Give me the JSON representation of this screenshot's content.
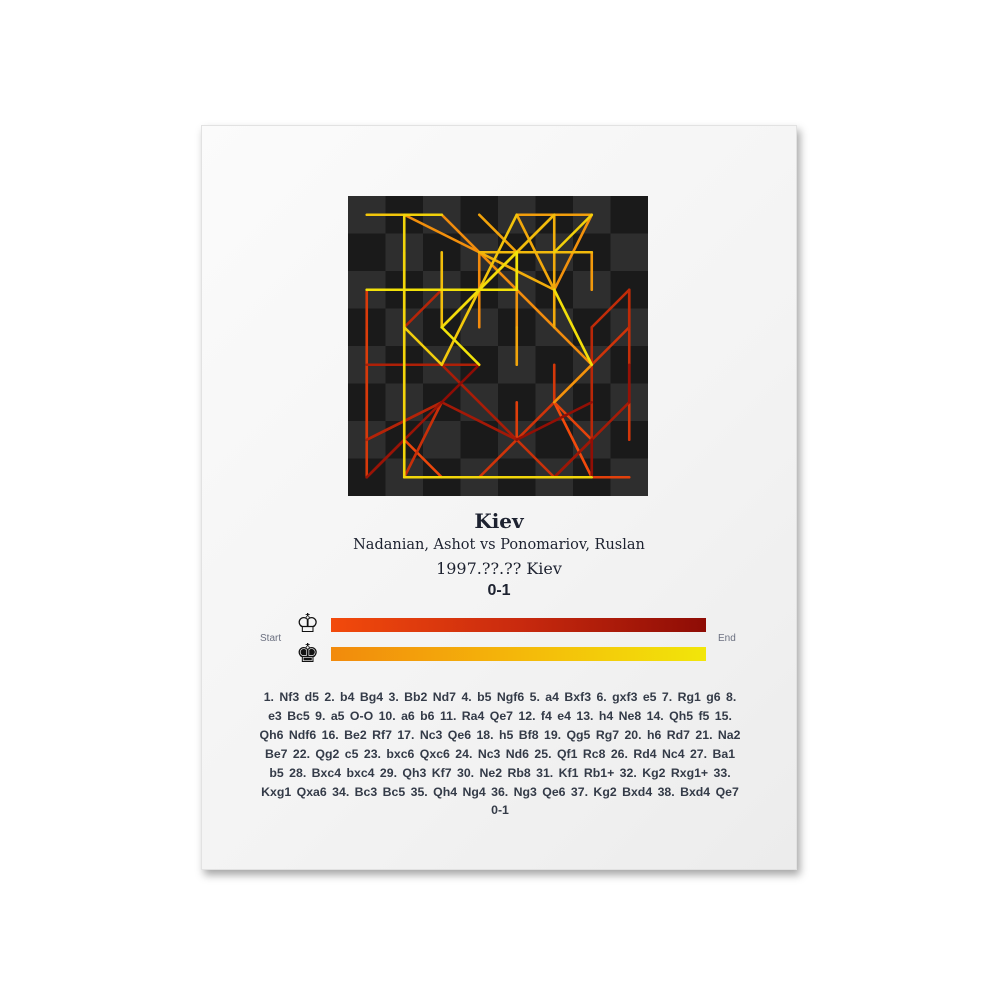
{
  "poster": {
    "title": "Kiev",
    "players": "Nadanian, Ashot vs Ponomariov, Ruslan",
    "event": "1997.??.?? Kiev",
    "result": "0-1",
    "legend": {
      "start_label": "Start",
      "end_label": "End",
      "white_icon": "white-king-icon",
      "black_icon": "black-king-icon",
      "white_gradient": [
        "#f24a0c",
        "#8e0c05"
      ],
      "black_gradient": [
        "#f28a0c",
        "#f2e60a"
      ]
    },
    "moves_text": "1. Nf3  d5  2. b4  Bg4  3. Bb2  Nd7  4. b5  Ngf6  5. a4  Bxf3  6. gxf3  e5  7. Rg1  g6  8. e3  Bc5  9. a5  O-O  10. a6  b6  11. Ra4  Qe7  12. f4  e4  13. h4  Ne8  14. Qh5  f5  15. Qh6  Ndf6  16. Be2  Rf7  17. Nc3  Qe6  18. h5  Bf8  19. Qg5  Rg7  20. h6  Rd7  21. Na2  Be7  22. Qg2  c5  23. bxc6  Qxc6  24. Nc3  Nd6  25. Qf1  Rc8  26. Rd4  Nc4  27. Ba1  b5  28. Bxc4  bxc4  29. Qh3  Kf7  30. Ne2  Rb8  31. Kf1  Rb1+  32. Kg2  Rxg1+  33. Kxg1  Qxa6  34. Bc3  Bc5  35. Qh4  Ng4  36. Ng3  Qe6  37. Kg2  Bxd4  38. Bxd4  Qe7  0-1"
  },
  "board": {
    "light_square": "#2e2e2e",
    "dark_square": "#1a1a1a",
    "white_moves": [
      "g1-f3",
      "b2-b4",
      "c1-b2",
      "b4-b5",
      "a2-a4",
      "g2-f3",
      "h1-g1",
      "e2-e3",
      "a4-a5",
      "a5-a6",
      "a1-a4",
      "f3-f4",
      "h2-h4",
      "d1-h5",
      "h5-h6",
      "f1-e2",
      "b1-c3",
      "h4-h5",
      "h6-g5",
      "h5-h6",
      "c3-a2",
      "g5-g2",
      "b5-c6",
      "a2-c3",
      "g2-f1",
      "a4-d4",
      "b2-a1",
      "e2-c4",
      "f1-h3",
      "c3-e2",
      "e1-f1",
      "f1-g2",
      "g2-g1",
      "a1-c3",
      "h3-h4",
      "e2-g3",
      "g1-g2",
      "c3-d4"
    ],
    "black_moves": [
      "d7-d5",
      "c8-g4",
      "b8-d7",
      "g8-f6",
      "g4-f3",
      "e7-e5",
      "g7-g6",
      "f8-c5",
      "e8-g8",
      "b7-b6",
      "d8-e7",
      "e5-e4",
      "f6-e8",
      "f7-f5",
      "d7-f6",
      "f8-f7",
      "e7-e6",
      "c5-f8",
      "f7-g7",
      "g7-d7",
      "f8-e7",
      "c7-c5",
      "e6-c6",
      "e8-d6",
      "a8-c8",
      "d6-c4",
      "b6-b5",
      "b5-c4",
      "g8-f7",
      "c8-b8",
      "b8-b1",
      "b1-g1",
      "c6-a6",
      "e7-c5",
      "f6-g4",
      "a6-e6",
      "c5-d4",
      "e6-e7"
    ]
  }
}
